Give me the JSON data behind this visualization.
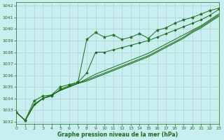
{
  "title": "Graphe pression niveau de la mer (hPa)",
  "bg_color": "#c8eef0",
  "grid_color": "#b0d0d0",
  "line_color": "#1a6b1a",
  "marker_color": "#1a6b1a",
  "xlim": [
    0,
    23
  ],
  "ylim": [
    1031.8,
    1042.3
  ],
  "xticks": [
    0,
    1,
    2,
    3,
    4,
    5,
    6,
    7,
    8,
    9,
    10,
    11,
    12,
    13,
    14,
    15,
    16,
    17,
    18,
    19,
    20,
    21,
    22,
    23
  ],
  "yticks": [
    1032,
    1033,
    1034,
    1035,
    1036,
    1037,
    1038,
    1039,
    1040,
    1041,
    1042
  ],
  "series_star": [
    1032.8,
    1032.1,
    1033.8,
    1034.2,
    1034.3,
    1035.0,
    1035.2,
    1035.4,
    1039.1,
    1039.7,
    1039.3,
    1039.5,
    1039.1,
    1039.3,
    1039.6,
    1039.2,
    1039.9,
    1040.1,
    1040.5,
    1040.8,
    1041.0,
    1041.3,
    1041.6,
    1041.8
  ],
  "series_diamond": [
    1032.8,
    1032.1,
    1033.5,
    1034.0,
    1034.2,
    1034.8,
    1035.1,
    1035.4,
    1036.2,
    1038.0,
    1038.0,
    1038.2,
    1038.4,
    1038.6,
    1038.8,
    1039.0,
    1039.3,
    1039.6,
    1039.9,
    1040.2,
    1040.5,
    1040.8,
    1041.2,
    1041.7
  ],
  "series_smooth1": [
    1032.8,
    1032.1,
    1033.4,
    1034.0,
    1034.3,
    1034.7,
    1035.0,
    1035.3,
    1035.7,
    1036.1,
    1036.4,
    1036.7,
    1037.0,
    1037.3,
    1037.6,
    1037.9,
    1038.3,
    1038.7,
    1039.1,
    1039.5,
    1039.9,
    1040.3,
    1040.8,
    1041.3
  ],
  "series_smooth2": [
    1032.8,
    1032.1,
    1033.4,
    1034.0,
    1034.3,
    1034.7,
    1035.0,
    1035.3,
    1035.6,
    1035.9,
    1036.2,
    1036.5,
    1036.8,
    1037.1,
    1037.4,
    1037.7,
    1038.1,
    1038.5,
    1038.9,
    1039.3,
    1039.8,
    1040.2,
    1040.7,
    1041.2
  ],
  "series_smooth3": [
    1032.8,
    1032.1,
    1033.4,
    1034.0,
    1034.3,
    1034.7,
    1035.0,
    1035.3,
    1035.5,
    1035.8,
    1036.1,
    1036.4,
    1036.7,
    1037.0,
    1037.3,
    1037.6,
    1038.0,
    1038.4,
    1038.8,
    1039.2,
    1039.7,
    1040.1,
    1040.6,
    1041.1
  ]
}
